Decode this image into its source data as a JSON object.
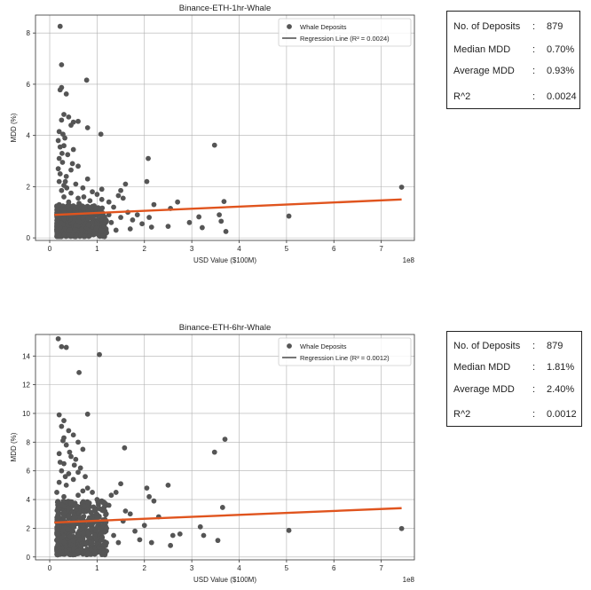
{
  "chart_data": [
    {
      "type": "scatter",
      "title": "Binance-ETH-1hr-Whale",
      "xlabel": "USD Value ($100M)",
      "ylabel": "MDD (%)",
      "x_offset_text": "1e8",
      "xlim": [
        -0.3,
        7.7
      ],
      "ylim": [
        -0.1,
        8.7
      ],
      "xticks": [
        0,
        1,
        2,
        3,
        4,
        5,
        6,
        7
      ],
      "yticks": [
        0,
        2,
        4,
        6,
        8
      ],
      "grid": true,
      "legend": {
        "placement": "top-right",
        "scatter_label": "Whale Deposits",
        "line_label": "Regression Line (R² = 0.0024)"
      },
      "regression": {
        "x": [
          0.1,
          7.43
        ],
        "y": [
          0.9,
          1.5
        ]
      },
      "points": [
        [
          0.22,
          8.26
        ],
        [
          0.25,
          6.76
        ],
        [
          0.25,
          5.87
        ],
        [
          0.22,
          5.78
        ],
        [
          0.35,
          5.62
        ],
        [
          0.78,
          6.16
        ],
        [
          0.4,
          4.72
        ],
        [
          0.5,
          4.52
        ],
        [
          0.6,
          4.55
        ],
        [
          0.3,
          4.82
        ],
        [
          0.25,
          4.6
        ],
        [
          0.45,
          4.4
        ],
        [
          0.8,
          4.3
        ],
        [
          0.2,
          4.15
        ],
        [
          0.28,
          4.05
        ],
        [
          1.08,
          4.05
        ],
        [
          0.18,
          3.8
        ],
        [
          0.3,
          3.6
        ],
        [
          0.22,
          3.55
        ],
        [
          0.5,
          3.45
        ],
        [
          0.38,
          3.25
        ],
        [
          0.2,
          3.1
        ],
        [
          0.27,
          2.95
        ],
        [
          0.6,
          2.8
        ],
        [
          0.45,
          2.65
        ],
        [
          0.22,
          2.5
        ],
        [
          0.35,
          2.4
        ],
        [
          0.8,
          2.3
        ],
        [
          0.2,
          2.2
        ],
        [
          0.55,
          2.1
        ],
        [
          0.3,
          2.05
        ],
        [
          0.7,
          1.95
        ],
        [
          0.25,
          1.85
        ],
        [
          0.45,
          1.75
        ],
        [
          0.9,
          1.8
        ],
        [
          1.0,
          1.7
        ],
        [
          0.3,
          1.6
        ],
        [
          0.6,
          1.55
        ],
        [
          1.1,
          1.5
        ],
        [
          0.4,
          1.4
        ],
        [
          0.85,
          1.45
        ],
        [
          1.25,
          1.4
        ],
        [
          0.2,
          1.3
        ],
        [
          0.5,
          1.25
        ],
        [
          0.75,
          1.2
        ],
        [
          1.35,
          1.2
        ],
        [
          1.45,
          1.65
        ],
        [
          1.55,
          1.55
        ],
        [
          1.6,
          2.1
        ],
        [
          1.5,
          1.85
        ],
        [
          1.1,
          1.9
        ],
        [
          2.08,
          3.1
        ],
        [
          2.05,
          2.2
        ],
        [
          2.2,
          1.3
        ],
        [
          2.1,
          0.8
        ],
        [
          2.15,
          0.42
        ],
        [
          1.95,
          0.55
        ],
        [
          1.7,
          0.35
        ],
        [
          2.55,
          1.15
        ],
        [
          2.7,
          1.4
        ],
        [
          2.5,
          0.45
        ],
        [
          2.95,
          0.6
        ],
        [
          3.15,
          0.82
        ],
        [
          3.22,
          0.4
        ],
        [
          3.48,
          3.62
        ],
        [
          3.68,
          1.42
        ],
        [
          3.58,
          0.9
        ],
        [
          3.72,
          0.25
        ],
        [
          3.62,
          0.65
        ],
        [
          5.05,
          0.85
        ],
        [
          7.43,
          1.98
        ],
        [
          1.25,
          0.9
        ],
        [
          1.3,
          0.6
        ],
        [
          1.4,
          0.3
        ],
        [
          1.5,
          0.8
        ],
        [
          1.65,
          1.0
        ],
        [
          1.75,
          0.7
        ],
        [
          1.85,
          0.9
        ],
        [
          1.2,
          0.2
        ],
        [
          1.05,
          1.1
        ],
        [
          0.95,
          0.15
        ],
        [
          0.15,
          0.9
        ],
        [
          0.15,
          0.5
        ],
        [
          0.18,
          2.7
        ],
        [
          0.33,
          2.2
        ],
        [
          0.42,
          1.1
        ],
        [
          0.65,
          0.95
        ],
        [
          0.72,
          1.6
        ],
        [
          0.9,
          0.6
        ],
        [
          0.32,
          3.9
        ],
        [
          0.26,
          3.3
        ],
        [
          0.48,
          2.9
        ],
        [
          0.36,
          1.95
        ],
        [
          0.62,
          1.35
        ],
        [
          1.15,
          0.45
        ]
      ],
      "dense_cluster": {
        "x_range": [
          0.15,
          1.2
        ],
        "y_range": [
          0.05,
          1.25
        ],
        "count": 620,
        "seed": 7
      }
    },
    {
      "type": "scatter",
      "title": "Binance-ETH-6hr-Whale",
      "xlabel": "USD Value ($100M)",
      "ylabel": "MDD (%)",
      "x_offset_text": "1e8",
      "xlim": [
        -0.3,
        7.7
      ],
      "ylim": [
        -0.2,
        15.5
      ],
      "xticks": [
        0,
        1,
        2,
        3,
        4,
        5,
        6,
        7
      ],
      "yticks": [
        0,
        2,
        4,
        6,
        8,
        10,
        12,
        14
      ],
      "grid": true,
      "legend": {
        "placement": "top-right",
        "scatter_label": "Whale Deposits",
        "line_label": "Regression Line (R² = 0.0012)"
      },
      "regression": {
        "x": [
          0.1,
          7.43
        ],
        "y": [
          2.4,
          3.4
        ]
      },
      "points": [
        [
          0.18,
          15.2
        ],
        [
          0.25,
          14.65
        ],
        [
          0.35,
          14.6
        ],
        [
          1.05,
          14.1
        ],
        [
          0.62,
          12.85
        ],
        [
          0.2,
          9.9
        ],
        [
          0.8,
          9.95
        ],
        [
          0.3,
          9.5
        ],
        [
          0.25,
          9.1
        ],
        [
          0.4,
          8.8
        ],
        [
          0.5,
          8.5
        ],
        [
          0.3,
          8.3
        ],
        [
          0.6,
          8.0
        ],
        [
          0.35,
          7.8
        ],
        [
          0.7,
          7.5
        ],
        [
          0.2,
          7.2
        ],
        [
          0.45,
          7.0
        ],
        [
          0.55,
          6.8
        ],
        [
          0.3,
          6.5
        ],
        [
          0.65,
          6.2
        ],
        [
          0.25,
          6.0
        ],
        [
          0.4,
          5.8
        ],
        [
          0.75,
          5.6
        ],
        [
          0.5,
          5.4
        ],
        [
          0.2,
          5.2
        ],
        [
          0.35,
          5.0
        ],
        [
          0.8,
          4.8
        ],
        [
          0.9,
          4.5
        ],
        [
          0.6,
          4.3
        ],
        [
          1.0,
          4.0
        ],
        [
          0.3,
          4.2
        ],
        [
          1.1,
          3.9
        ],
        [
          0.45,
          3.75
        ],
        [
          1.3,
          4.3
        ],
        [
          1.4,
          4.5
        ],
        [
          1.5,
          5.1
        ],
        [
          1.58,
          7.6
        ],
        [
          1.15,
          3.8
        ],
        [
          1.25,
          3.6
        ],
        [
          1.6,
          3.2
        ],
        [
          1.7,
          3.0
        ],
        [
          2.05,
          4.8
        ],
        [
          2.1,
          4.2
        ],
        [
          2.2,
          3.9
        ],
        [
          2.5,
          5.0
        ],
        [
          2.3,
          2.8
        ],
        [
          2.0,
          2.2
        ],
        [
          2.15,
          1.0
        ],
        [
          2.6,
          1.5
        ],
        [
          2.75,
          1.6
        ],
        [
          2.55,
          0.8
        ],
        [
          3.18,
          2.1
        ],
        [
          3.25,
          1.5
        ],
        [
          3.48,
          7.3
        ],
        [
          3.7,
          8.2
        ],
        [
          3.65,
          3.45
        ],
        [
          3.55,
          1.15
        ],
        [
          5.05,
          1.85
        ],
        [
          7.43,
          1.98
        ],
        [
          1.2,
          2.0
        ],
        [
          1.35,
          1.5
        ],
        [
          1.45,
          1.0
        ],
        [
          1.55,
          2.5
        ],
        [
          1.8,
          1.8
        ],
        [
          1.9,
          1.2
        ],
        [
          1.1,
          0.6
        ],
        [
          1.0,
          2.7
        ],
        [
          0.95,
          3.3
        ],
        [
          0.15,
          4.5
        ],
        [
          0.18,
          3.0
        ],
        [
          0.22,
          6.6
        ],
        [
          0.28,
          8.1
        ],
        [
          0.42,
          7.3
        ],
        [
          0.52,
          6.4
        ],
        [
          0.33,
          5.6
        ],
        [
          0.6,
          5.9
        ],
        [
          0.7,
          4.6
        ]
      ],
      "dense_cluster": {
        "x_range": [
          0.15,
          1.2
        ],
        "y_range": [
          0.15,
          3.9
        ],
        "count": 620,
        "seed": 11
      }
    }
  ],
  "stats_panels": [
    {
      "rows": [
        {
          "label": "No. of Deposits",
          "colon": ":",
          "value": "879"
        },
        {
          "label": "Median MDD",
          "colon": ":",
          "value": "0.70%"
        },
        {
          "label": "Average MDD",
          "colon": ":",
          "value": "0.93%"
        },
        {
          "label": "R^2",
          "colon": ":",
          "value": "0.0024"
        }
      ]
    },
    {
      "rows": [
        {
          "label": "No. of Deposits",
          "colon": ":",
          "value": "879"
        },
        {
          "label": "Median MDD",
          "colon": ":",
          "value": "1.81%"
        },
        {
          "label": "Average MDD",
          "colon": ":",
          "value": "2.40%"
        },
        {
          "label": "R^2",
          "colon": ":",
          "value": "0.0012"
        }
      ]
    }
  ],
  "colors": {
    "point": "#555555",
    "regression": "#e0541e",
    "grid": "#b0b0b0",
    "axes": "#333333"
  }
}
